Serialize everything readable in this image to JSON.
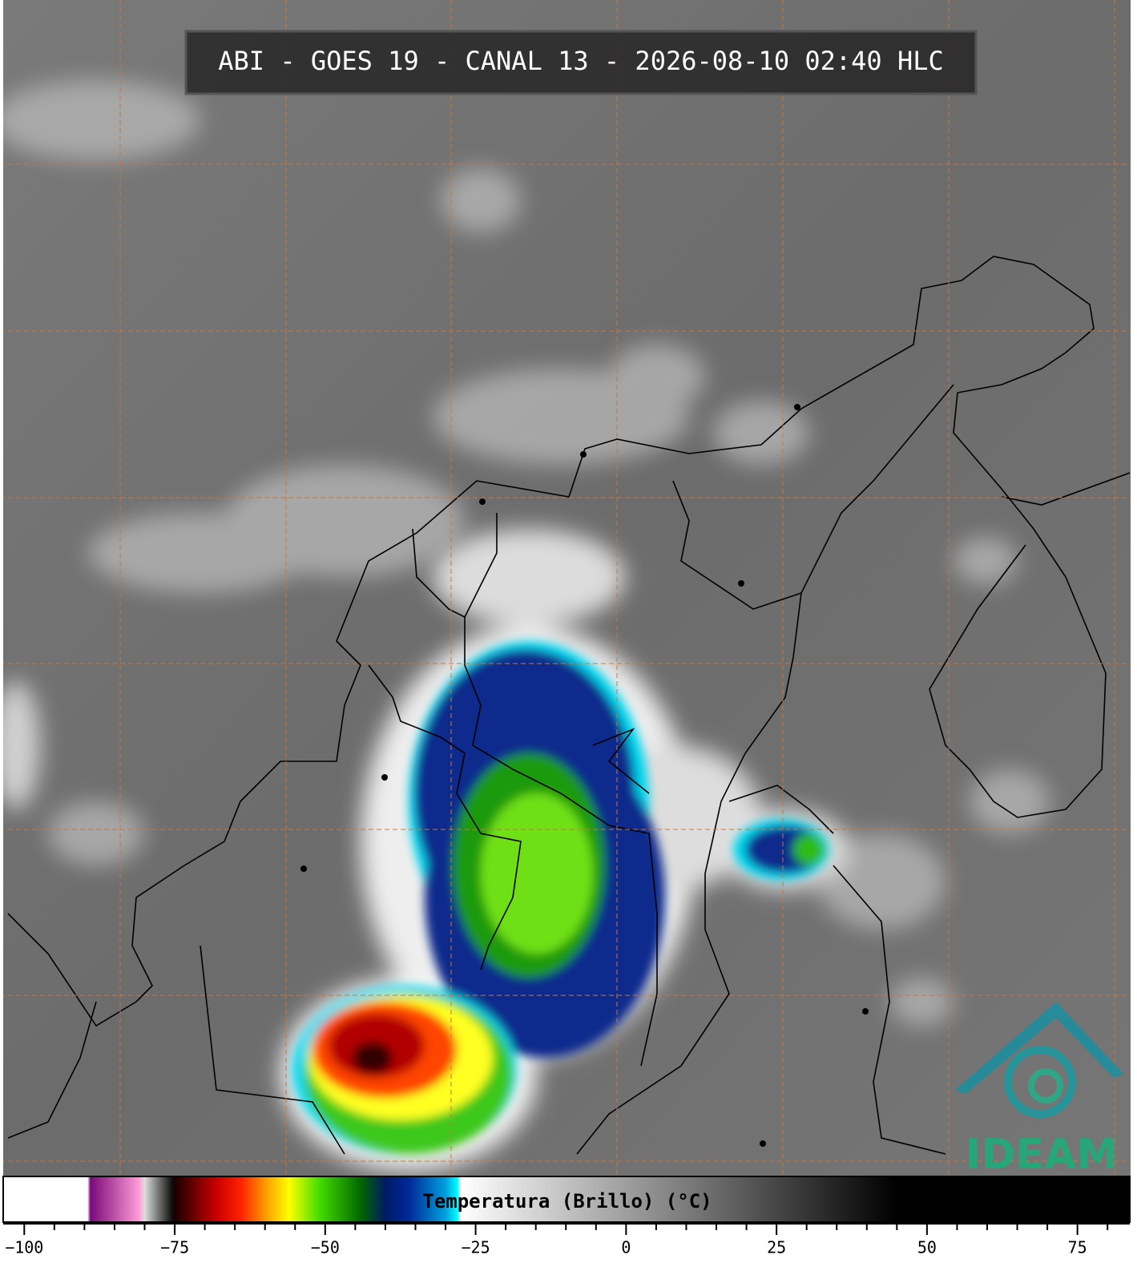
{
  "title": "ABI - GOES 19 - CANAL 13 - 2026-08-10 02:40 HLC",
  "logo": {
    "text": "IDEAM"
  },
  "colorbar": {
    "label": "Temperatura (Brillo) (°C)",
    "xlim": [
      -103.5,
      83.7
    ],
    "ticks": [
      {
        "value": -100,
        "label": "−100"
      },
      {
        "value": -75,
        "label": "−75"
      },
      {
        "value": -50,
        "label": "−50"
      },
      {
        "value": -25,
        "label": "−25"
      },
      0,
      25,
      50,
      75
    ],
    "minor_ticks": [
      -95,
      -90,
      -85,
      -80,
      -70,
      -65,
      -60,
      -55,
      -45,
      -40,
      -35,
      -30,
      -20,
      -15,
      -10,
      -5,
      5,
      10,
      15,
      20,
      30,
      35,
      40,
      45,
      55,
      60,
      65,
      70,
      80
    ],
    "stops": [
      {
        "value": -89.5,
        "color": "#ffffff"
      },
      {
        "value": -89,
        "color": "#7a0a7a"
      },
      {
        "value": -81,
        "color": "#ff99d6"
      },
      {
        "value": -80,
        "color": "#dddddd"
      },
      {
        "value": -75.5,
        "color": "#111111"
      },
      {
        "value": -75,
        "color": "#1a0000"
      },
      {
        "value": -68,
        "color": "#cc0000"
      },
      {
        "value": -64,
        "color": "#ff2000"
      },
      {
        "value": -60,
        "color": "#ff9900"
      },
      {
        "value": -56,
        "color": "#ffff00"
      },
      {
        "value": -51,
        "color": "#44dd00"
      },
      {
        "value": -44,
        "color": "#006600"
      },
      {
        "value": -40,
        "color": "#001a66"
      },
      {
        "value": -36,
        "color": "#002a99"
      },
      {
        "value": -30,
        "color": "#00a0dd"
      },
      {
        "value": -28,
        "color": "#00ffff"
      },
      {
        "value": -27.5,
        "color": "#ffffff"
      },
      {
        "value": 45,
        "color": "#000000"
      }
    ]
  }
}
